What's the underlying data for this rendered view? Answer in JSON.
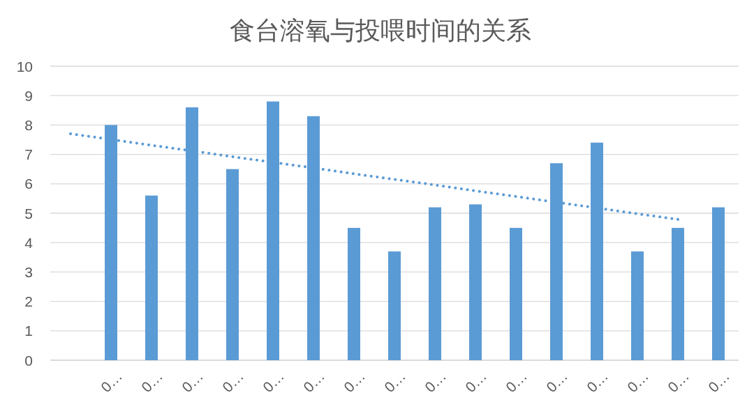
{
  "chart_data": {
    "type": "bar",
    "title": "食台溶氧与投喂时间的关系",
    "categories": [
      null,
      "0…",
      "0…",
      "0…",
      "0…",
      "0…",
      "0…",
      "0…",
      "0…",
      "0…",
      "0…",
      "0…",
      "0…",
      "0…",
      "0…",
      "0…",
      "0…"
    ],
    "series": [
      {
        "color": "#5b9bd5",
        "values": [
          null,
          8.0,
          5.6,
          8.6,
          6.5,
          8.8,
          8.3,
          4.5,
          3.7,
          5.2,
          5.3,
          4.5,
          6.7,
          7.4,
          3.7,
          4.5,
          5.2
        ]
      },
      {
        "type": "line",
        "color": "#5b9bd5",
        "line_style": "dotted",
        "values": [
          7.7,
          7.51,
          7.31,
          7.12,
          6.92,
          6.73,
          6.54,
          6.34,
          6.15,
          5.96,
          5.76,
          5.57,
          5.37,
          5.18,
          4.98,
          4.79,
          null
        ]
      }
    ],
    "ylim": [
      0,
      10
    ],
    "yticks": [
      0,
      1,
      2,
      3,
      4,
      5,
      6,
      7,
      8,
      9,
      10
    ],
    "grid": "y"
  }
}
